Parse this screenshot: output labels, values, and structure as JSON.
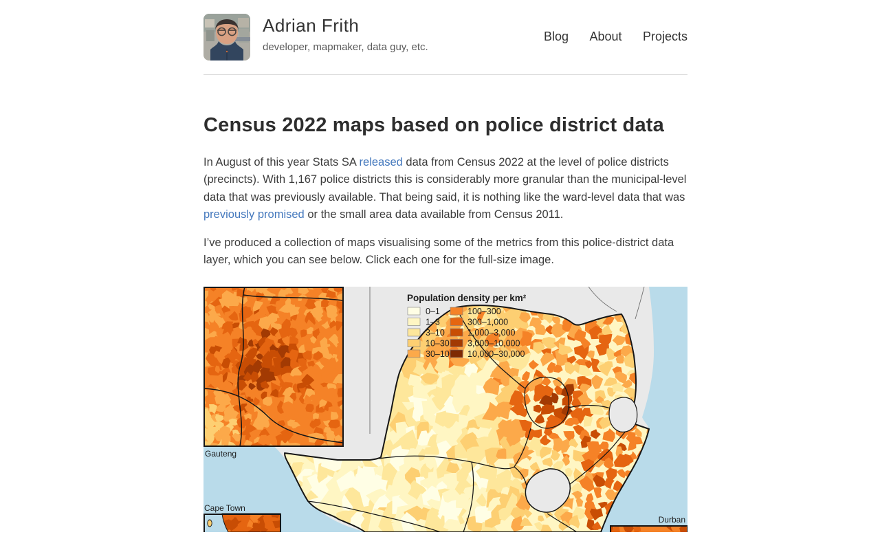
{
  "header": {
    "site_title": "Adrian Frith",
    "tagline": "developer, mapmaker, data guy, etc.",
    "nav": [
      {
        "label": "Blog"
      },
      {
        "label": "About"
      },
      {
        "label": "Projects"
      }
    ]
  },
  "post": {
    "title": "Census 2022 maps based on police district data",
    "paragraphs": [
      [
        {
          "t": "In August of this year Stats SA "
        },
        {
          "t": "released",
          "link": true
        },
        {
          "t": " data from Census 2022 at the level of police districts (precincts). With 1,167 police districts this is considerably more granular than the municipal-level data that was previously available. That being said, it is nothing like the ward-level data that was "
        },
        {
          "t": "previously promised",
          "link": true
        },
        {
          "t": " or the small area data available from Census 2011."
        }
      ],
      [
        {
          "t": "I’ve produced a collection of maps visualising some of the metrics from this police-district data layer, which you can see below. Click each one for the full-size image."
        }
      ]
    ]
  },
  "map": {
    "legend": {
      "title": "Population density per km²",
      "classes": [
        {
          "label": "0–1",
          "color": "#FFFEE5"
        },
        {
          "label": "1–3",
          "color": "#FFF6C3"
        },
        {
          "label": "3–10",
          "color": "#FEE79B"
        },
        {
          "label": "10–30",
          "color": "#FDCF72"
        },
        {
          "label": "30–100",
          "color": "#FCA94A"
        },
        {
          "label": "100–300",
          "color": "#F58227"
        },
        {
          "label": "300–1,000",
          "color": "#E56511"
        },
        {
          "label": "1,000–3,000",
          "color": "#C84D04"
        },
        {
          "label": "3,000–10,000",
          "color": "#A23A03"
        },
        {
          "label": "10,000–30,000",
          "color": "#7E2A04"
        }
      ]
    },
    "labels": {
      "inset_nw": "Gauteng",
      "inset_sw": "Cape Town",
      "inset_se": "Durban"
    },
    "colors": {
      "ocean": "#B9DBEA",
      "neutral_land": "#E9E9E9",
      "border": "#161616",
      "thin_border": "#6f6f6f",
      "label_text": "#1c1c1c"
    }
  }
}
